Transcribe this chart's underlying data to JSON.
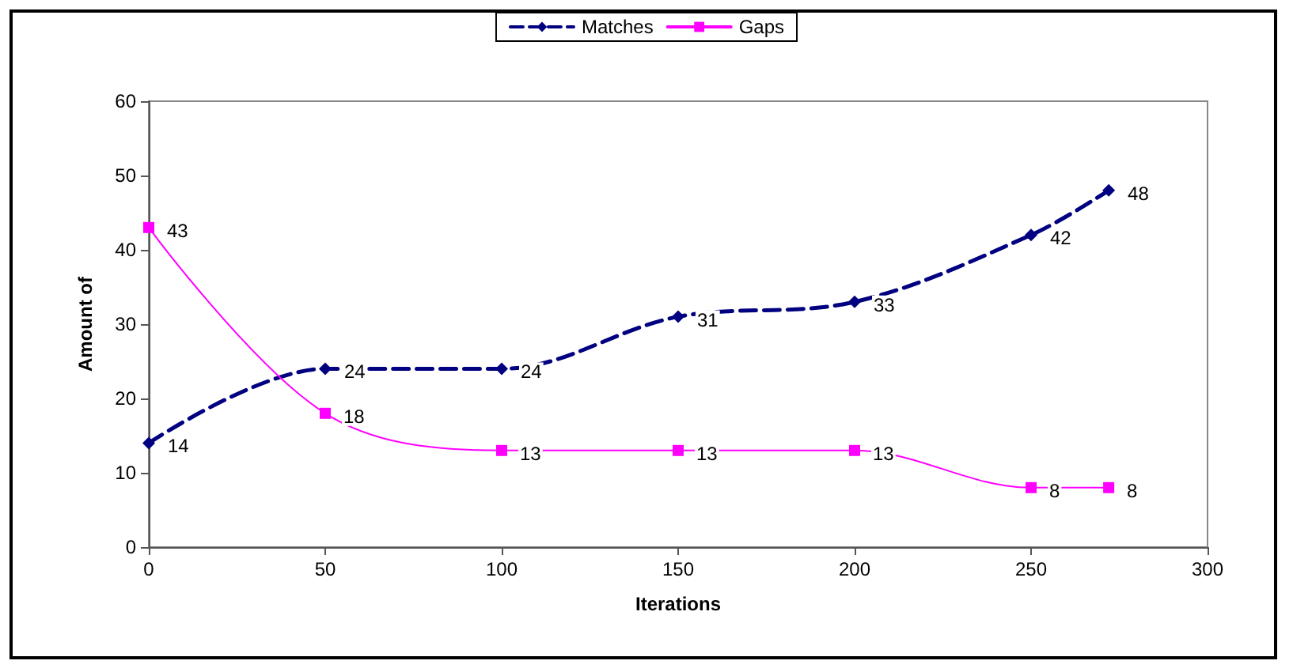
{
  "chart_data": {
    "type": "line",
    "xlabel": "Iterations",
    "ylabel": "Amount of",
    "x": [
      0,
      50,
      100,
      150,
      200,
      250,
      272
    ],
    "series": [
      {
        "name": "Matches",
        "color": "#000080",
        "values": [
          14,
          24,
          24,
          31,
          33,
          42,
          48
        ],
        "marker": "diamond",
        "line_style": "dashed"
      },
      {
        "name": "Gaps",
        "color": "#ff00ff",
        "values": [
          43,
          18,
          13,
          13,
          13,
          8,
          8
        ],
        "marker": "square",
        "line_style": "solid"
      }
    ],
    "xlim": [
      0,
      300
    ],
    "xticks": [
      0,
      50,
      100,
      150,
      200,
      250,
      300
    ],
    "ylim": [
      0,
      60
    ],
    "yticks": [
      0,
      10,
      20,
      30,
      40,
      50,
      60
    ],
    "grid": false,
    "legend": "top",
    "data_labels": true
  }
}
